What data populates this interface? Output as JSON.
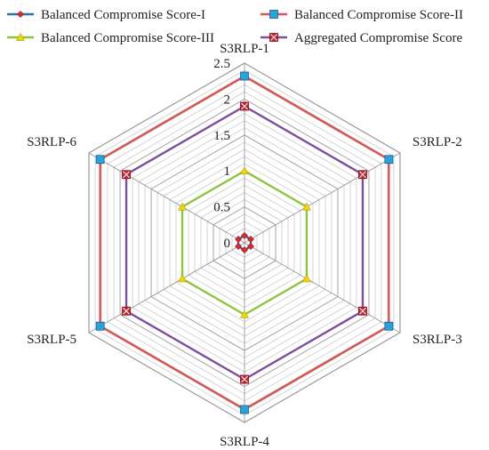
{
  "chart_data": {
    "type": "radar",
    "categories": [
      "S3RLP-1",
      "S3RLP-2",
      "S3RLP-3",
      "S3RLP-4",
      "S3RLP-5",
      "S3RLP-6"
    ],
    "rlim": [
      0,
      2.5
    ],
    "ticks": [
      "0",
      "0.5",
      "1",
      "1.5",
      "2",
      "2.5"
    ],
    "tick_values": [
      0,
      0.5,
      1,
      1.5,
      2,
      2.5
    ],
    "minor_step": 0.1,
    "grid": true,
    "legend_position": "top",
    "series": [
      {
        "name": "Balanced Compromise Score-I",
        "color": "#2f6db5",
        "marker": "diamond",
        "marker_color": "#e8262b",
        "values": [
          0.1,
          0.1,
          0.1,
          0.1,
          0.1,
          0.1
        ]
      },
      {
        "name": "Balanced Compromise Score-II",
        "color": "#d9534f",
        "marker": "square",
        "marker_color": "#29a3dd",
        "values": [
          2.32,
          2.32,
          2.32,
          2.32,
          2.32,
          2.32
        ]
      },
      {
        "name": "Balanced Compromise Score-III",
        "color": "#8cc63f",
        "marker": "triangle",
        "marker_color": "#f2d600",
        "values": [
          1.0,
          1.0,
          1.0,
          1.0,
          1.0,
          1.0
        ]
      },
      {
        "name": "Aggregated Compromise Score",
        "color": "#7b4fa0",
        "marker": "x-square",
        "marker_color": "#d0202e",
        "values": [
          1.9,
          1.9,
          1.9,
          1.9,
          1.9,
          1.9
        ]
      }
    ]
  }
}
